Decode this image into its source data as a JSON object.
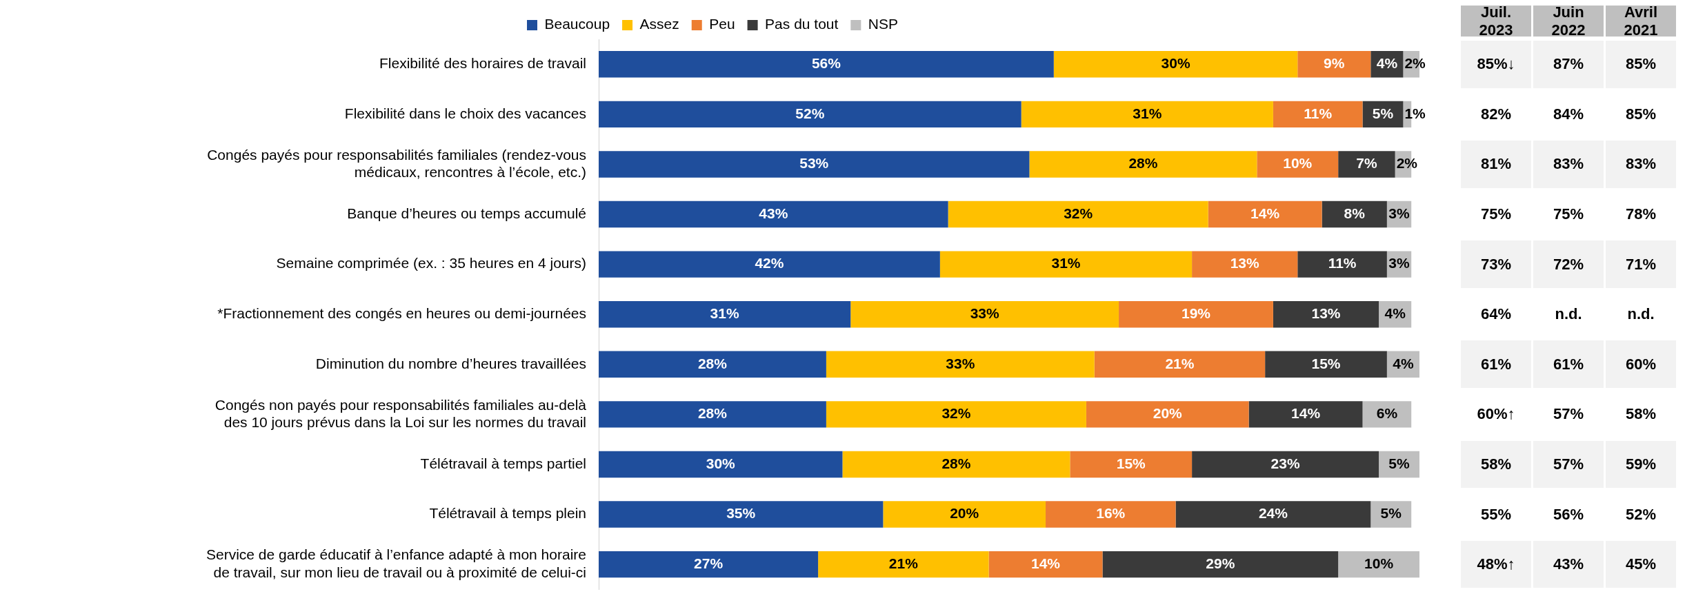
{
  "chart_data": [
    {
      "type": "bar",
      "orientation": "horizontal",
      "stacked": true,
      "legend": "top",
      "tick_labels": "y",
      "xlim": [
        0,
        101
      ],
      "categories": [
        "Flexibilité des horaires de travail",
        "Flexibilité dans le choix des vacances",
        "Congés payés pour responsabilités familiales (rendez-vous médicaux, rencontres à l’école, etc.)",
        "Banque d’heures ou temps accumulé",
        "Semaine comprimée (ex. : 35 heures en 4 jours)",
        "*Fractionnement des congés en heures ou demi-journées",
        "Diminution du nombre d’heures travaillées",
        "Congés non payés pour responsabilités familiales au-delà des 10 jours prévus dans la Loi sur les normes du travail",
        "Télétravail à temps partiel",
        "Télétravail à temps plein",
        "Service de garde éducatif à l’enfance adapté à mon horaire de travail, sur mon lieu de travail ou à proximité de celui-ci"
      ],
      "series": [
        {
          "name": "Beaucoup",
          "color": "#1f4e9c",
          "values": [
            56,
            52,
            53,
            43,
            42,
            31,
            28,
            28,
            30,
            35,
            27
          ],
          "value_labels": [
            "56%",
            "52%",
            "53%",
            "43%",
            "42%",
            "31%",
            "28%",
            "28%",
            "30%",
            "35%",
            "27%"
          ]
        },
        {
          "name": "Assez",
          "color": "#ffc000",
          "values": [
            30,
            31,
            28,
            32,
            31,
            33,
            33,
            32,
            28,
            20,
            21
          ],
          "value_labels": [
            "30%",
            "31%",
            "28%",
            "32%",
            "31%",
            "33%",
            "33%",
            "32%",
            "28%",
            "20%",
            "21%"
          ]
        },
        {
          "name": "Peu",
          "color": "#ed7d31",
          "values": [
            9,
            11,
            10,
            14,
            13,
            19,
            21,
            20,
            15,
            16,
            14
          ],
          "value_labels": [
            "9%",
            "11%",
            "10%",
            "14%",
            "13%",
            "19%",
            "21%",
            "20%",
            "15%",
            "16%",
            "14%"
          ]
        },
        {
          "name": "Pas du tout",
          "color": "#3a3a3a",
          "values": [
            4,
            5,
            7,
            8,
            11,
            13,
            15,
            14,
            23,
            24,
            29
          ],
          "value_labels": [
            "4%",
            "5%",
            "7%",
            "8%",
            "11%",
            "13%",
            "15%",
            "14%",
            "23%",
            "24%",
            "29%"
          ]
        },
        {
          "name": "NSP",
          "color": "#bfbfbf",
          "values": [
            2,
            1,
            2,
            3,
            3,
            4,
            4,
            6,
            5,
            5,
            10
          ],
          "value_labels": [
            "2%",
            "1%",
            "2%",
            "3%",
            "3%",
            "4%",
            "4%",
            "6%",
            "5%",
            "5%",
            "10%"
          ]
        }
      ]
    },
    {
      "type": "heatmap",
      "categories": [
        "Juil. 2023",
        "Juin 2022",
        "Avril 2021"
      ],
      "y_categories": [
        null,
        null,
        null,
        null,
        null,
        null,
        null,
        null,
        null,
        null,
        null
      ],
      "cells": [
        [
          85,
          87,
          85
        ],
        [
          82,
          84,
          85
        ],
        [
          81,
          83,
          83
        ],
        [
          75,
          75,
          78
        ],
        [
          73,
          72,
          71
        ],
        [
          64,
          null,
          null
        ],
        [
          61,
          61,
          60
        ],
        [
          60,
          57,
          58
        ],
        [
          58,
          57,
          59
        ],
        [
          55,
          56,
          52
        ],
        [
          48,
          43,
          45
        ]
      ],
      "cell_labels": [
        [
          "85%↓",
          "87%",
          "85%"
        ],
        [
          "82%",
          "84%",
          "85%"
        ],
        [
          "81%",
          "83%",
          "83%"
        ],
        [
          "75%",
          "75%",
          "78%"
        ],
        [
          "73%",
          "72%",
          "71%"
        ],
        [
          "64%",
          "n.d.",
          "n.d."
        ],
        [
          "61%",
          "61%",
          "60%"
        ],
        [
          "60%↑",
          "57%",
          "58%"
        ],
        [
          "58%",
          "57%",
          "59%"
        ],
        [
          "55%",
          "56%",
          "52%"
        ],
        [
          "48%↑",
          "43%",
          "45%"
        ]
      ]
    }
  ]
}
